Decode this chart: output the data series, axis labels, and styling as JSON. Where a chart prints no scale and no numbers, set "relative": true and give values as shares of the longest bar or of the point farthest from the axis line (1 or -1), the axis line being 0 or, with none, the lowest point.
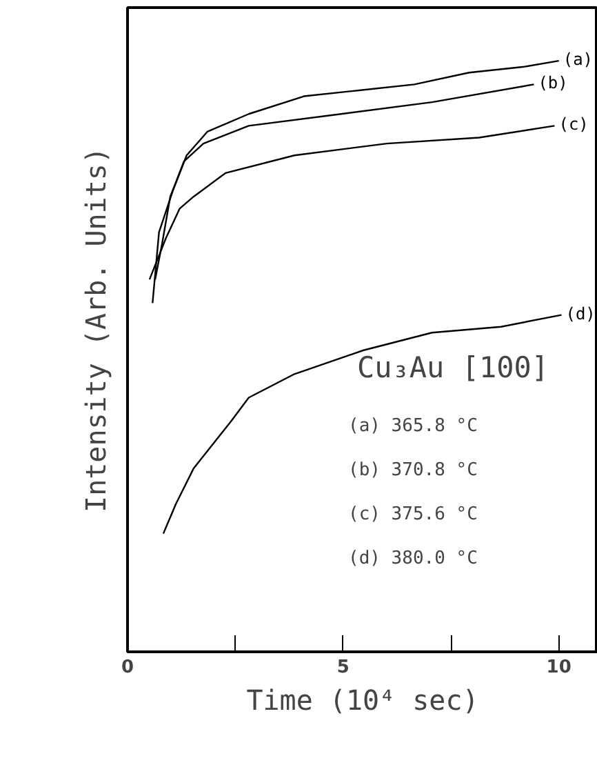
{
  "chart_data": {
    "type": "line",
    "relative": true,
    "xlabel": "Time (10⁴ sec)",
    "ylabel": "Intensity (Arb. Units)",
    "xlim": [
      0,
      10.9
    ],
    "xticks": [
      0,
      {
        "value": 2.5,
        "label": null
      },
      5,
      {
        "value": 7.5,
        "label": null
      },
      10
    ],
    "marker": "none",
    "line_style": "solid",
    "grid": false,
    "annotations": [
      "Cu₃Au [100]",
      "(a)  365.8 °C",
      "(b)  370.8 °C",
      "(c)  375.6 °C",
      "(d)  380.0 °C"
    ],
    "series": [
      {
        "name": "(a)",
        "color": "#000000",
        "x": [
          0.58,
          0.73,
          1.05,
          1.37,
          1.85,
          2.81,
          4.09,
          5.37,
          6.65,
          7.92,
          9.2,
          10.0
        ],
        "values": [
          0.59,
          0.71,
          0.78,
          0.84,
          0.88,
          0.91,
          0.94,
          0.95,
          0.96,
          0.98,
          0.99,
          1.0
        ]
      },
      {
        "name": "(b)",
        "color": "#000000",
        "x": [
          0.64,
          0.8,
          0.99,
          1.31,
          1.76,
          2.81,
          4.95,
          7.06,
          9.42
        ],
        "values": [
          0.63,
          0.69,
          0.77,
          0.83,
          0.86,
          0.89,
          0.91,
          0.93,
          0.96
        ]
      },
      {
        "name": "(c)",
        "color": "#000000",
        "x": [
          0.51,
          0.89,
          1.21,
          1.53,
          2.27,
          3.87,
          6.01,
          8.15,
          9.9
        ],
        "values": [
          0.63,
          0.7,
          0.75,
          0.77,
          0.81,
          0.84,
          0.86,
          0.87,
          0.89
        ]
      },
      {
        "name": "(d)",
        "color": "#000000",
        "x": [
          0.83,
          1.12,
          1.53,
          2.4,
          2.81,
          3.87,
          5.46,
          7.06,
          8.66,
          10.06
        ],
        "values": [
          0.2,
          0.25,
          0.31,
          0.39,
          0.43,
          0.47,
          0.51,
          0.54,
          0.55,
          0.57
        ]
      }
    ]
  }
}
